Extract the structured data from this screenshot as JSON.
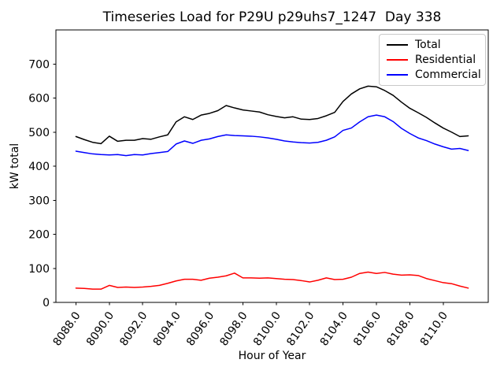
{
  "chart_data": {
    "type": "line",
    "title": "Timeseries Load for P29U p29uhs7_1247  Day 338",
    "xlabel": "Hour of Year",
    "ylabel": "kW total",
    "xlim": [
      8086.8,
      8112.7
    ],
    "ylim": [
      0,
      800
    ],
    "grid": false,
    "legend_position": "upper right",
    "background_color": "#ffffff",
    "axis_color": "#000000",
    "xticks": {
      "values": [
        8088,
        8090,
        8092,
        8094,
        8096,
        8098,
        8100,
        8102,
        8104,
        8106,
        8108,
        8110
      ],
      "labels": [
        "8088.0",
        "8090.0",
        "8092.0",
        "8094.0",
        "8096.0",
        "8098.0",
        "8100.0",
        "8102.0",
        "8104.0",
        "8106.0",
        "8108.0",
        "8110.0"
      ]
    },
    "yticks": {
      "values": [
        0,
        100,
        200,
        300,
        400,
        500,
        600,
        700
      ],
      "labels": [
        "0",
        "100",
        "200",
        "300",
        "400",
        "500",
        "600",
        "700"
      ]
    },
    "x": [
      8088,
      8088.5,
      8089,
      8089.5,
      8090,
      8090.5,
      8091,
      8091.5,
      8092,
      8092.5,
      8093,
      8093.5,
      8094,
      8094.5,
      8095,
      8095.5,
      8096,
      8096.5,
      8097,
      8097.5,
      8098,
      8098.5,
      8099,
      8099.5,
      8100,
      8100.5,
      8101,
      8101.5,
      8102,
      8102.5,
      8103,
      8103.5,
      8104,
      8104.5,
      8105,
      8105.5,
      8106,
      8106.5,
      8107,
      8107.5,
      8108,
      8108.5,
      8109,
      8109.5,
      8110,
      8110.5,
      8111,
      8111.5
    ],
    "series": [
      {
        "name": "Total",
        "color": "#000000",
        "values": [
          487,
          478,
          470,
          466,
          488,
          473,
          476,
          476,
          481,
          479,
          486,
          492,
          530,
          545,
          537,
          550,
          555,
          563,
          578,
          571,
          565,
          562,
          559,
          551,
          546,
          542,
          545,
          538,
          537,
          540,
          548,
          558,
          590,
          612,
          627,
          635,
          633,
          622,
          608,
          588,
          570,
          557,
          543,
          527,
          512,
          500,
          487,
          489
        ]
      },
      {
        "name": "Residential",
        "color": "#ff0000",
        "values": [
          42,
          41,
          39,
          39,
          50,
          44,
          45,
          44,
          45,
          47,
          50,
          56,
          63,
          68,
          68,
          65,
          71,
          74,
          78,
          86,
          72,
          72,
          71,
          72,
          70,
          68,
          67,
          64,
          60,
          65,
          72,
          67,
          68,
          74,
          85,
          89,
          85,
          88,
          83,
          80,
          81,
          79,
          70,
          64,
          58,
          55,
          48,
          42
        ]
      },
      {
        "name": "Commercial",
        "color": "#0000ff",
        "values": [
          444,
          440,
          436,
          434,
          433,
          434,
          431,
          434,
          433,
          437,
          440,
          443,
          465,
          474,
          467,
          476,
          480,
          487,
          492,
          490,
          489,
          488,
          486,
          483,
          479,
          474,
          471,
          469,
          468,
          470,
          476,
          486,
          505,
          512,
          530,
          545,
          550,
          545,
          531,
          511,
          496,
          483,
          475,
          465,
          457,
          450,
          452,
          446
        ]
      }
    ]
  }
}
